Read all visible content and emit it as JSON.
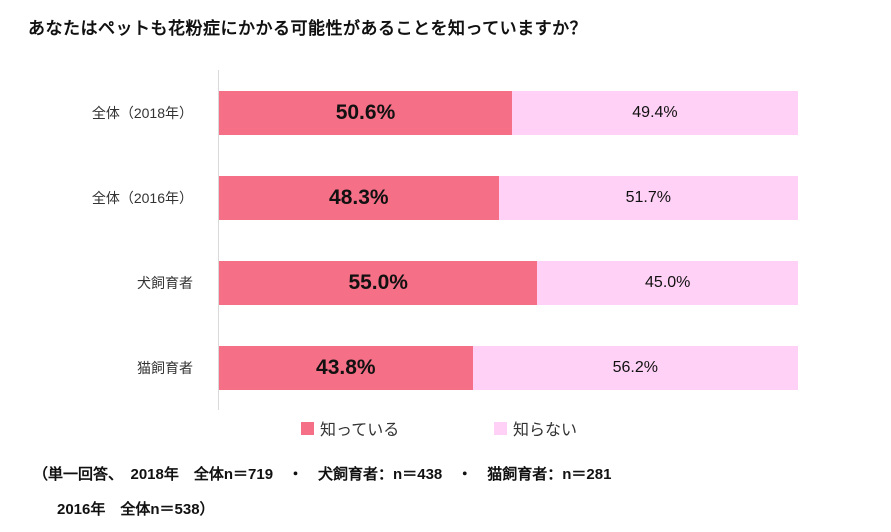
{
  "title": "あなたはペットも花粉症にかかる可能性があることを知っていますか？",
  "colors": {
    "know": "#f56f86",
    "dont_know": "#ffd1f6",
    "axis": "#d9d9d9"
  },
  "chart_data": {
    "type": "bar",
    "orientation": "horizontal-stacked",
    "title": "あなたはペットも花粉症にかかる可能性があることを知っていますか？",
    "categories": [
      "全体（2018年）",
      "全体（2016年）",
      "犬飼育者",
      "猫飼育者"
    ],
    "series": [
      {
        "name": "知っている",
        "color": "#f56f86",
        "values": [
          50.6,
          48.3,
          55.0,
          43.8
        ]
      },
      {
        "name": "知らない",
        "color": "#ffd1f6",
        "values": [
          49.4,
          51.7,
          45.0,
          56.2
        ]
      }
    ],
    "value_labels": [
      [
        "50.6%",
        "49.4%"
      ],
      [
        "48.3%",
        "51.7%"
      ],
      [
        "55.0%",
        "45.0%"
      ],
      [
        "43.8%",
        "56.2%"
      ]
    ],
    "xlim": [
      0,
      100
    ],
    "grid": false,
    "legend_position": "bottom"
  },
  "legend": [
    {
      "label": "知っている"
    },
    {
      "label": "知らない"
    }
  ],
  "footer": {
    "line1": "（単一回答、　2018年　全体n＝719　・　犬飼育者：n＝438　・　猫飼育者：n＝281",
    "line2": "2016年　全体n＝538）"
  }
}
